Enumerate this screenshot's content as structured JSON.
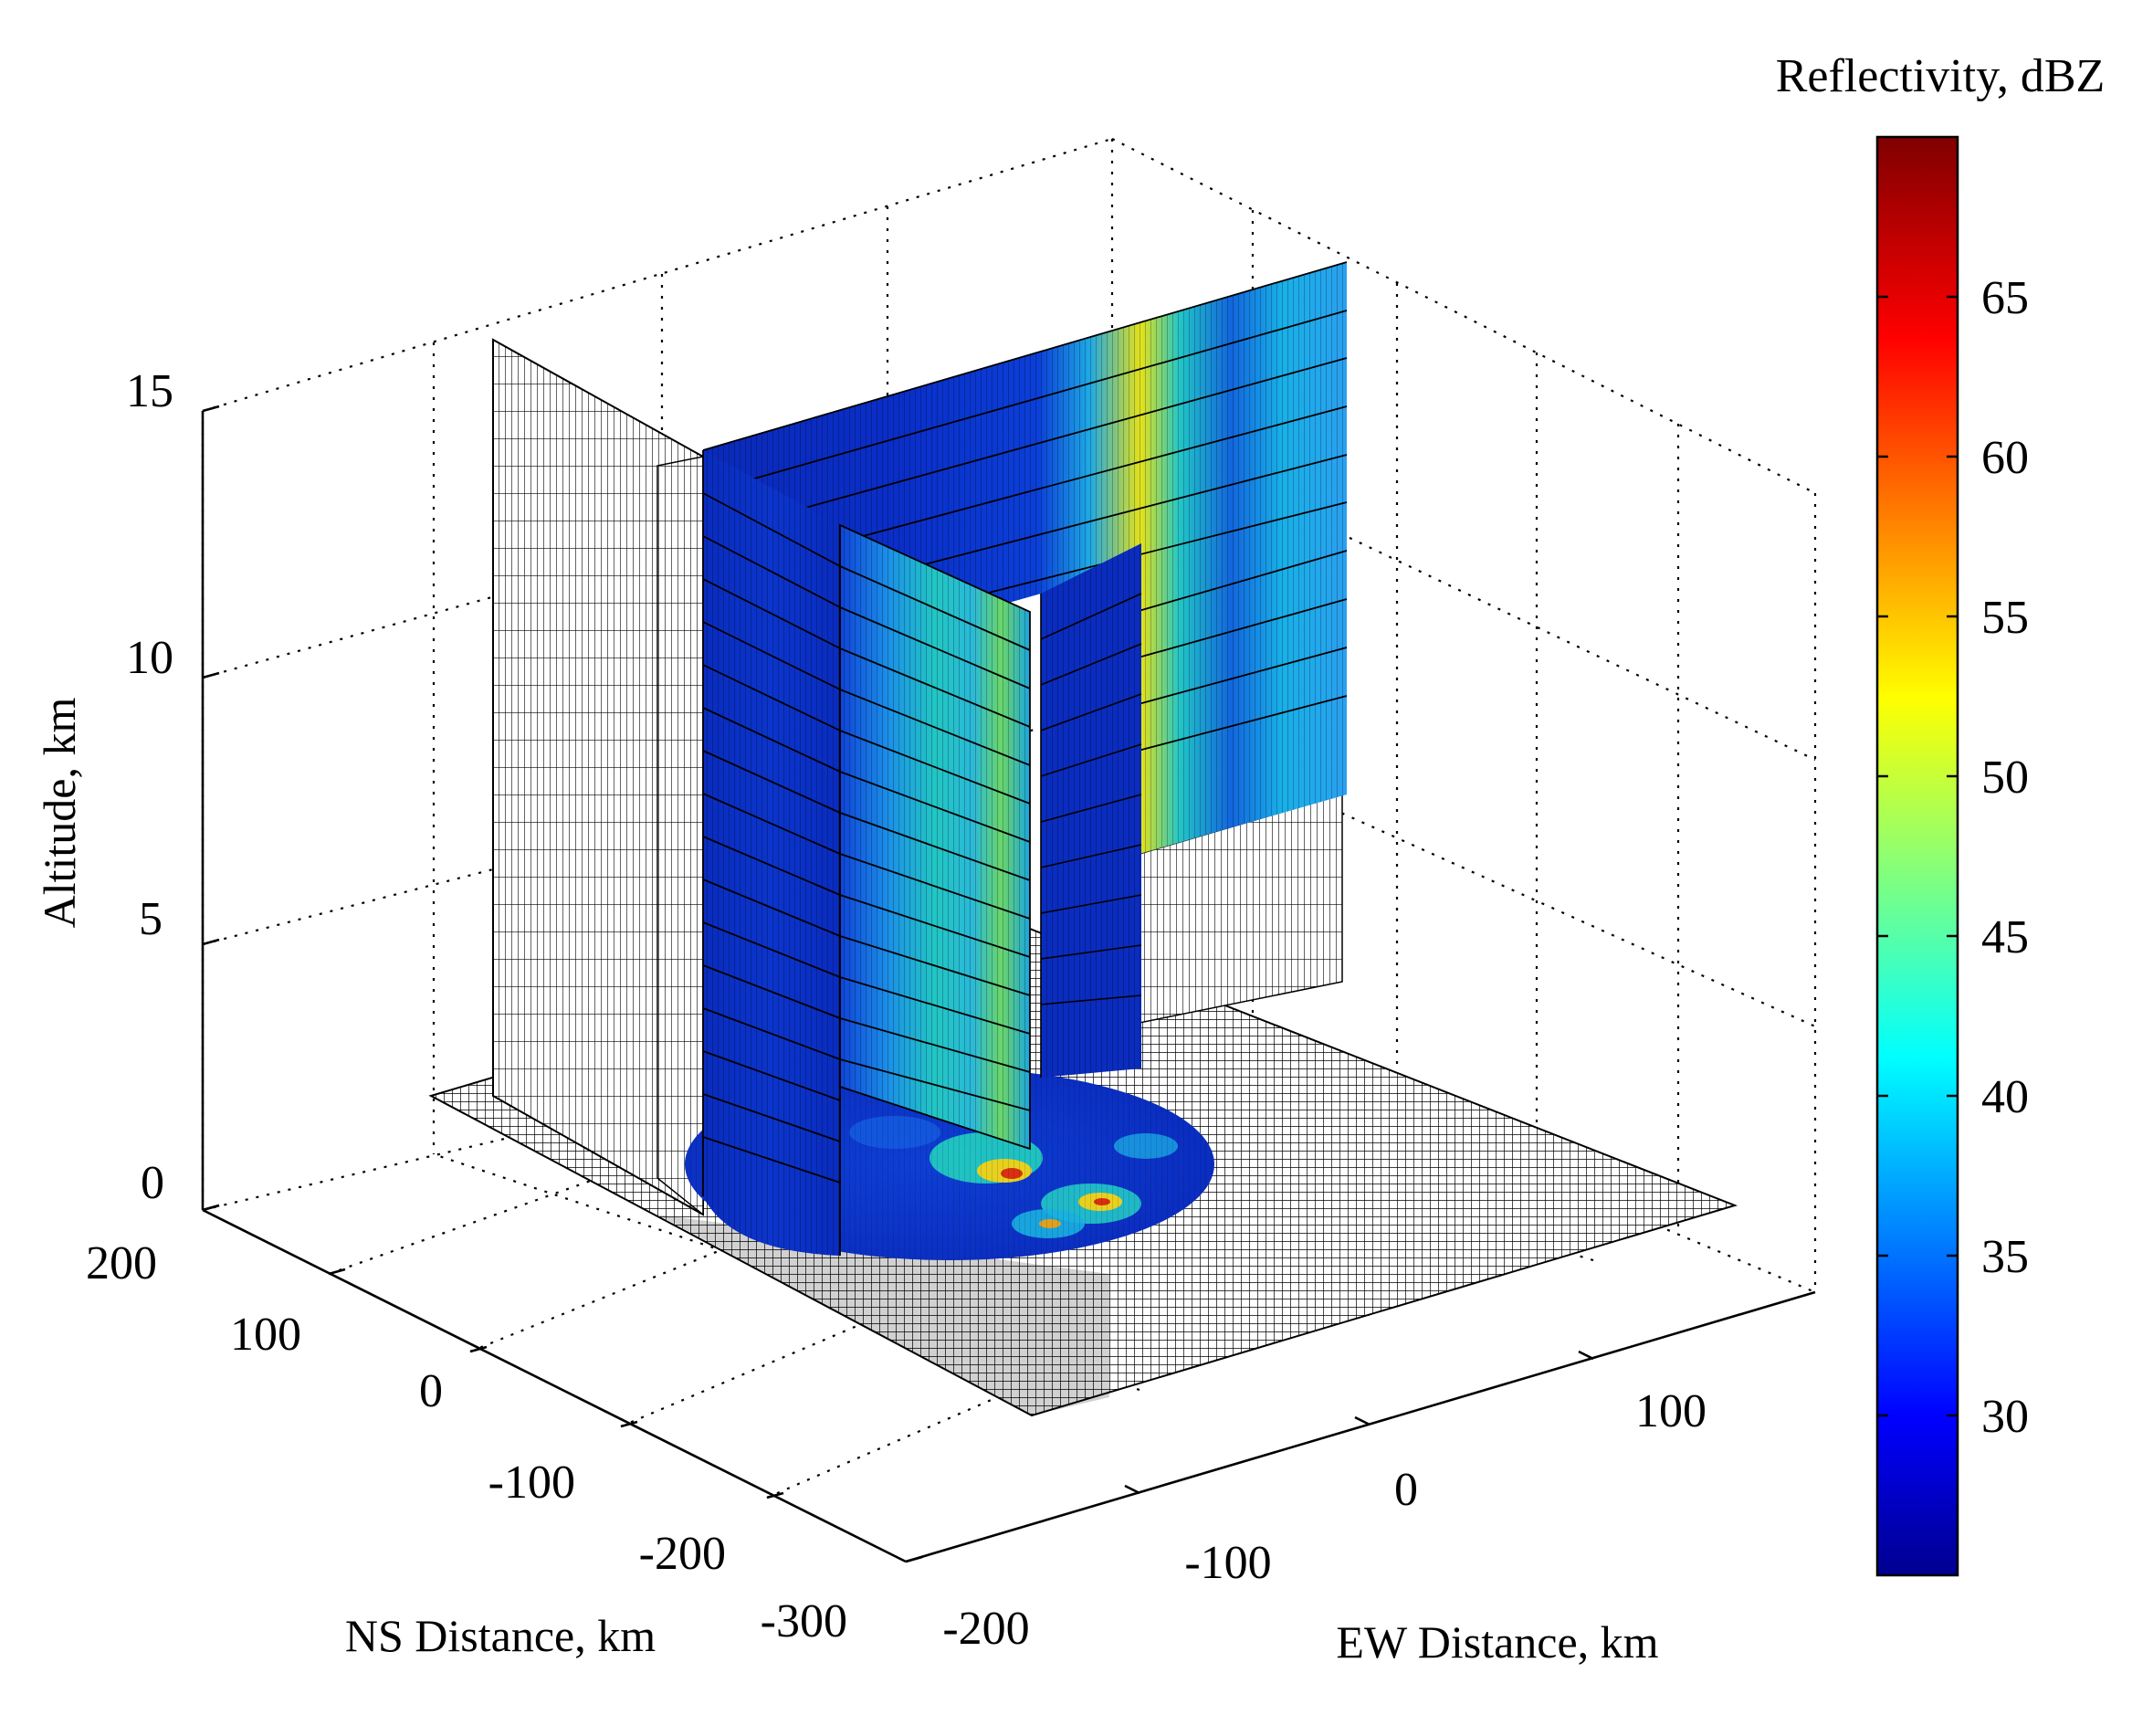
{
  "chart_data": {
    "type": "3d-surface-slices",
    "xlabel": "EW Distance, km",
    "ylabel": "NS Distance, km",
    "zlabel": "Altitude, km",
    "colorbar_title": "Reflectivity, dBZ",
    "x_ticks": [
      "-200",
      "-100",
      "0",
      "100"
    ],
    "y_ticks": [
      "200",
      "100",
      "0",
      "-100",
      "-200",
      "-300"
    ],
    "z_ticks": [
      "0",
      "5",
      "10",
      "15"
    ],
    "colorbar_ticks": [
      "30",
      "35",
      "40",
      "45",
      "50",
      "55",
      "60",
      "65"
    ],
    "clim": [
      25,
      70
    ],
    "colormap": "jet",
    "grid": true,
    "colorbar_location": "right"
  }
}
